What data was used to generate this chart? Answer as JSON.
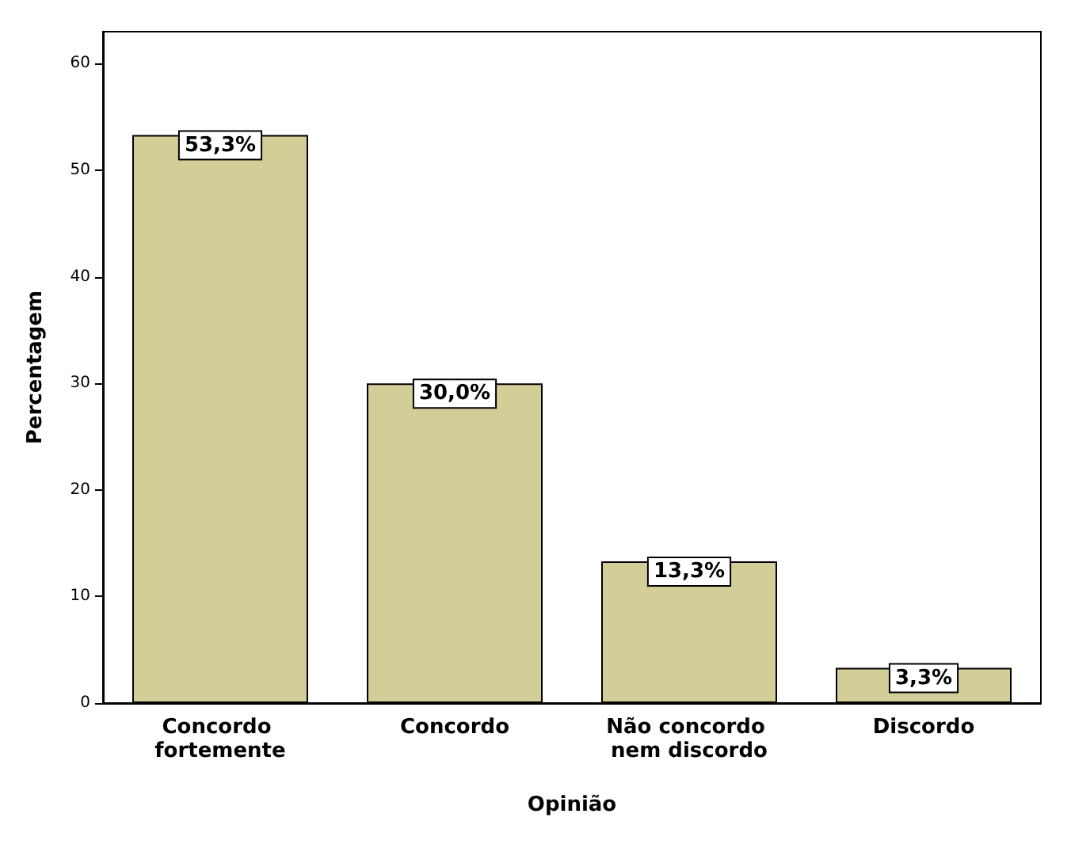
{
  "chart_data": {
    "type": "bar",
    "xlabel": "Opinião",
    "ylabel": "Percentagem",
    "categories": [
      "Concordo fortemente",
      "Concordo",
      "Não concordo nem discordo",
      "Discordo"
    ],
    "values": [
      53.3,
      30.0,
      13.3,
      3.3
    ],
    "value_labels": [
      "53,3%",
      "30,0%",
      "13,3%",
      "3,3%"
    ],
    "color": "#d3ce97",
    "ylim": [
      0,
      63
    ],
    "yticks": [
      0,
      10,
      20,
      30,
      40,
      50,
      60
    ],
    "grid": false
  }
}
